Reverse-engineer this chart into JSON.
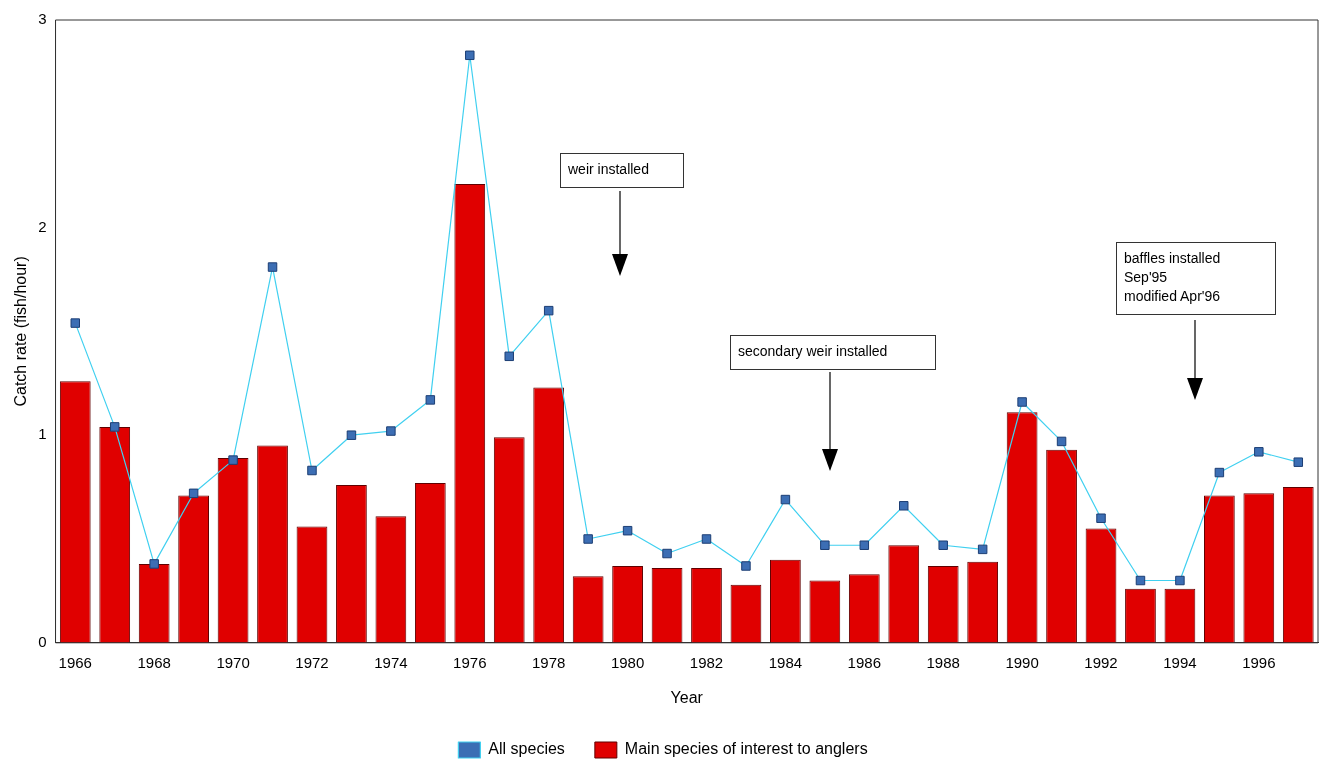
{
  "chart_data": {
    "type": "bar",
    "xlabel": "Year",
    "ylabel": "Catch rate (fish/hour)",
    "categories": [
      "1966",
      null,
      "1968",
      null,
      "1970",
      null,
      "1972",
      null,
      "1974",
      null,
      "1976",
      null,
      "1978",
      null,
      "1980",
      null,
      "1982",
      null,
      "1984",
      null,
      "1986",
      null,
      "1988",
      null,
      "1990",
      null,
      "1992",
      null,
      "1994",
      null,
      "1996",
      null
    ],
    "series": [
      {
        "name": "All species",
        "type": "line",
        "color": "#3c6eb4",
        "values": [
          1.54,
          1.04,
          0.38,
          0.72,
          0.88,
          1.81,
          0.83,
          1.0,
          1.02,
          1.17,
          2.83,
          1.38,
          1.6,
          0.5,
          0.54,
          0.43,
          0.5,
          0.37,
          0.69,
          0.47,
          0.47,
          0.66,
          0.47,
          0.45,
          1.16,
          0.97,
          0.6,
          0.3,
          0.3,
          0.82,
          0.92,
          0.87
        ]
      },
      {
        "name": "Main species of interest to anglers",
        "type": "bar",
        "color": "#e00000",
        "values": [
          1.26,
          1.04,
          0.38,
          0.71,
          0.89,
          0.95,
          0.56,
          0.76,
          0.61,
          0.77,
          2.21,
          0.99,
          1.23,
          0.32,
          0.37,
          0.36,
          0.36,
          0.28,
          0.4,
          0.3,
          0.33,
          0.47,
          0.37,
          0.39,
          1.11,
          0.93,
          0.55,
          0.26,
          0.26,
          0.71,
          0.72,
          0.75
        ]
      }
    ],
    "ylim": [
      0,
      3
    ],
    "yticks": [
      0,
      1,
      2,
      3
    ],
    "grid": false,
    "legend": "bottom",
    "marker": "square",
    "line_style": "solid",
    "annotations": [
      "weir installed",
      "secondary weir installed",
      "baffles installed\nSep'95\nmodified Apr'96"
    ]
  }
}
